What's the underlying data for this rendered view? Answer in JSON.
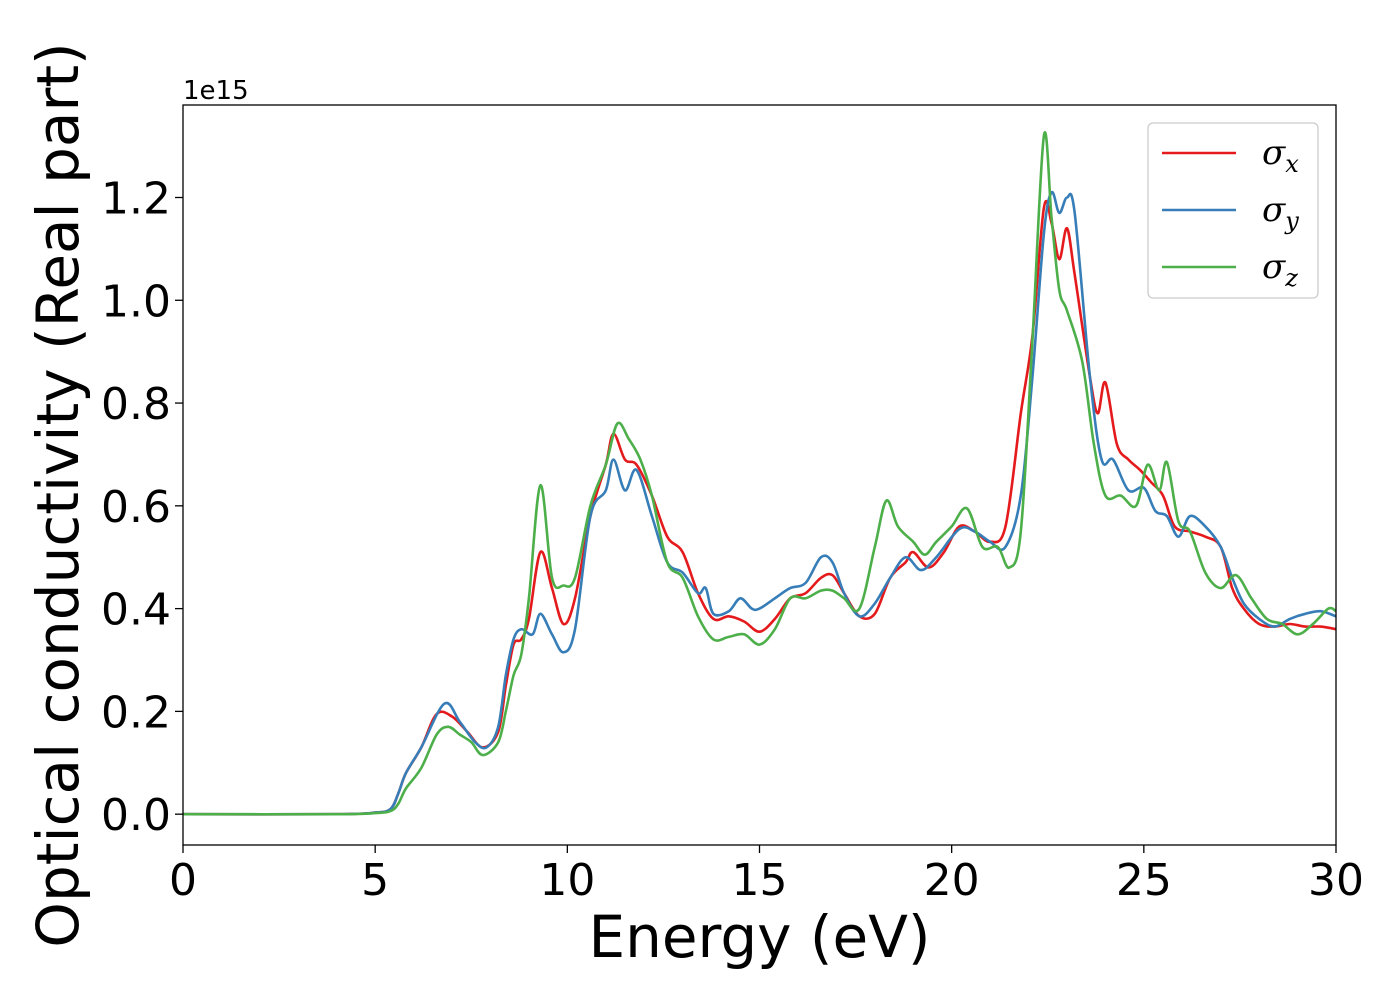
{
  "chart_data": {
    "type": "line",
    "xlabel": "Energy (eV)",
    "ylabel": "Optical conductivity (Real part)",
    "y_offset_label": "1e15",
    "xlim": [
      0,
      30
    ],
    "ylim": [
      -0.06,
      1.38
    ],
    "x_ticks": [
      0,
      5,
      10,
      15,
      20,
      25,
      30
    ],
    "x_tick_labels": [
      "0",
      "5",
      "10",
      "15",
      "20",
      "25",
      "30"
    ],
    "y_ticks": [
      0.0,
      0.2,
      0.4,
      0.6,
      0.8,
      1.0,
      1.2
    ],
    "y_tick_labels": [
      "0.0",
      "0.2",
      "0.4",
      "0.6",
      "0.8",
      "1.0",
      "1.2"
    ],
    "grid": false,
    "legend_position": "top-right",
    "series": [
      {
        "name": "σx",
        "symbol": "σ",
        "subscript": "x",
        "color": "#e41a1c",
        "points": [
          [
            0,
            0
          ],
          [
            4,
            0
          ],
          [
            5,
            0.003
          ],
          [
            5.4,
            0.01
          ],
          [
            5.6,
            0.04
          ],
          [
            5.8,
            0.08
          ],
          [
            6.2,
            0.13
          ],
          [
            6.6,
            0.195
          ],
          [
            7.0,
            0.19
          ],
          [
            7.4,
            0.16
          ],
          [
            7.8,
            0.13
          ],
          [
            8.2,
            0.16
          ],
          [
            8.4,
            0.25
          ],
          [
            8.6,
            0.33
          ],
          [
            8.8,
            0.34
          ],
          [
            9.0,
            0.38
          ],
          [
            9.3,
            0.51
          ],
          [
            9.6,
            0.44
          ],
          [
            9.9,
            0.37
          ],
          [
            10.2,
            0.42
          ],
          [
            10.6,
            0.58
          ],
          [
            11.0,
            0.68
          ],
          [
            11.2,
            0.74
          ],
          [
            11.5,
            0.69
          ],
          [
            11.8,
            0.68
          ],
          [
            12.2,
            0.62
          ],
          [
            12.6,
            0.54
          ],
          [
            13.0,
            0.51
          ],
          [
            13.4,
            0.43
          ],
          [
            13.8,
            0.38
          ],
          [
            14.2,
            0.385
          ],
          [
            14.6,
            0.375
          ],
          [
            15.0,
            0.355
          ],
          [
            15.4,
            0.38
          ],
          [
            15.8,
            0.42
          ],
          [
            16.2,
            0.43
          ],
          [
            16.6,
            0.46
          ],
          [
            16.9,
            0.465
          ],
          [
            17.2,
            0.43
          ],
          [
            17.6,
            0.385
          ],
          [
            18.0,
            0.39
          ],
          [
            18.4,
            0.46
          ],
          [
            18.8,
            0.49
          ],
          [
            19.0,
            0.51
          ],
          [
            19.4,
            0.48
          ],
          [
            19.8,
            0.51
          ],
          [
            20.2,
            0.56
          ],
          [
            20.6,
            0.55
          ],
          [
            21.0,
            0.53
          ],
          [
            21.4,
            0.56
          ],
          [
            21.8,
            0.78
          ],
          [
            22.1,
            0.93
          ],
          [
            22.4,
            1.18
          ],
          [
            22.6,
            1.15
          ],
          [
            22.8,
            1.08
          ],
          [
            23.0,
            1.14
          ],
          [
            23.2,
            1.05
          ],
          [
            23.6,
            0.85
          ],
          [
            23.8,
            0.78
          ],
          [
            24.0,
            0.84
          ],
          [
            24.3,
            0.72
          ],
          [
            24.6,
            0.69
          ],
          [
            24.9,
            0.67
          ],
          [
            25.2,
            0.645
          ],
          [
            25.5,
            0.62
          ],
          [
            25.8,
            0.56
          ],
          [
            26.2,
            0.55
          ],
          [
            26.6,
            0.54
          ],
          [
            27.0,
            0.52
          ],
          [
            27.3,
            0.44
          ],
          [
            27.6,
            0.4
          ],
          [
            28.0,
            0.37
          ],
          [
            28.4,
            0.365
          ],
          [
            28.8,
            0.37
          ],
          [
            29.2,
            0.365
          ],
          [
            29.6,
            0.365
          ],
          [
            30.0,
            0.36
          ]
        ]
      },
      {
        "name": "σy",
        "symbol": "σ",
        "subscript": "y",
        "color": "#377eb8",
        "points": [
          [
            0,
            0
          ],
          [
            4,
            0
          ],
          [
            5,
            0.003
          ],
          [
            5.4,
            0.01
          ],
          [
            5.6,
            0.04
          ],
          [
            5.8,
            0.08
          ],
          [
            6.2,
            0.13
          ],
          [
            6.8,
            0.215
          ],
          [
            7.2,
            0.18
          ],
          [
            7.6,
            0.14
          ],
          [
            7.9,
            0.13
          ],
          [
            8.2,
            0.17
          ],
          [
            8.4,
            0.27
          ],
          [
            8.6,
            0.34
          ],
          [
            8.8,
            0.36
          ],
          [
            9.1,
            0.35
          ],
          [
            9.3,
            0.39
          ],
          [
            9.6,
            0.35
          ],
          [
            9.9,
            0.315
          ],
          [
            10.2,
            0.36
          ],
          [
            10.6,
            0.58
          ],
          [
            11.0,
            0.63
          ],
          [
            11.2,
            0.69
          ],
          [
            11.5,
            0.63
          ],
          [
            11.8,
            0.67
          ],
          [
            12.2,
            0.58
          ],
          [
            12.6,
            0.49
          ],
          [
            13.0,
            0.47
          ],
          [
            13.4,
            0.43
          ],
          [
            13.6,
            0.44
          ],
          [
            13.8,
            0.39
          ],
          [
            14.2,
            0.395
          ],
          [
            14.5,
            0.42
          ],
          [
            14.8,
            0.4
          ],
          [
            15.0,
            0.4
          ],
          [
            15.4,
            0.42
          ],
          [
            15.8,
            0.44
          ],
          [
            16.2,
            0.45
          ],
          [
            16.6,
            0.5
          ],
          [
            16.9,
            0.49
          ],
          [
            17.2,
            0.43
          ],
          [
            17.6,
            0.385
          ],
          [
            18.0,
            0.41
          ],
          [
            18.4,
            0.46
          ],
          [
            18.8,
            0.5
          ],
          [
            19.2,
            0.475
          ],
          [
            19.6,
            0.5
          ],
          [
            20.2,
            0.555
          ],
          [
            20.6,
            0.55
          ],
          [
            21.0,
            0.53
          ],
          [
            21.4,
            0.52
          ],
          [
            21.8,
            0.62
          ],
          [
            22.1,
            0.85
          ],
          [
            22.4,
            1.13
          ],
          [
            22.6,
            1.21
          ],
          [
            22.8,
            1.17
          ],
          [
            23.0,
            1.2
          ],
          [
            23.2,
            1.17
          ],
          [
            23.6,
            0.85
          ],
          [
            23.9,
            0.69
          ],
          [
            24.2,
            0.69
          ],
          [
            24.6,
            0.63
          ],
          [
            25.0,
            0.635
          ],
          [
            25.3,
            0.59
          ],
          [
            25.6,
            0.58
          ],
          [
            25.9,
            0.54
          ],
          [
            26.2,
            0.58
          ],
          [
            26.6,
            0.56
          ],
          [
            27.0,
            0.52
          ],
          [
            27.3,
            0.46
          ],
          [
            27.6,
            0.41
          ],
          [
            28.0,
            0.38
          ],
          [
            28.4,
            0.365
          ],
          [
            28.8,
            0.38
          ],
          [
            29.2,
            0.39
          ],
          [
            29.6,
            0.395
          ],
          [
            30.0,
            0.385
          ]
        ]
      },
      {
        "name": "σz",
        "symbol": "σ",
        "subscript": "z",
        "color": "#4daf4a",
        "points": [
          [
            0,
            0
          ],
          [
            4,
            0
          ],
          [
            5,
            0.002
          ],
          [
            5.4,
            0.006
          ],
          [
            5.6,
            0.02
          ],
          [
            5.8,
            0.05
          ],
          [
            6.2,
            0.09
          ],
          [
            6.6,
            0.155
          ],
          [
            6.9,
            0.17
          ],
          [
            7.2,
            0.155
          ],
          [
            7.5,
            0.14
          ],
          [
            7.8,
            0.115
          ],
          [
            8.2,
            0.14
          ],
          [
            8.4,
            0.2
          ],
          [
            8.6,
            0.27
          ],
          [
            8.8,
            0.31
          ],
          [
            9.0,
            0.42
          ],
          [
            9.3,
            0.64
          ],
          [
            9.6,
            0.46
          ],
          [
            9.9,
            0.445
          ],
          [
            10.2,
            0.46
          ],
          [
            10.6,
            0.6
          ],
          [
            11.0,
            0.68
          ],
          [
            11.3,
            0.76
          ],
          [
            11.6,
            0.73
          ],
          [
            11.9,
            0.69
          ],
          [
            12.2,
            0.62
          ],
          [
            12.6,
            0.49
          ],
          [
            13.0,
            0.46
          ],
          [
            13.4,
            0.385
          ],
          [
            13.8,
            0.34
          ],
          [
            14.2,
            0.345
          ],
          [
            14.6,
            0.35
          ],
          [
            15.0,
            0.33
          ],
          [
            15.4,
            0.36
          ],
          [
            15.8,
            0.42
          ],
          [
            16.2,
            0.42
          ],
          [
            16.6,
            0.435
          ],
          [
            16.9,
            0.435
          ],
          [
            17.2,
            0.42
          ],
          [
            17.6,
            0.4
          ],
          [
            18.0,
            0.52
          ],
          [
            18.3,
            0.61
          ],
          [
            18.6,
            0.56
          ],
          [
            19.0,
            0.53
          ],
          [
            19.3,
            0.505
          ],
          [
            19.6,
            0.53
          ],
          [
            20.0,
            0.56
          ],
          [
            20.4,
            0.595
          ],
          [
            20.8,
            0.52
          ],
          [
            21.2,
            0.52
          ],
          [
            21.5,
            0.48
          ],
          [
            21.8,
            0.55
          ],
          [
            22.1,
            0.92
          ],
          [
            22.4,
            1.32
          ],
          [
            22.6,
            1.16
          ],
          [
            22.8,
            1.02
          ],
          [
            23.0,
            0.98
          ],
          [
            23.4,
            0.88
          ],
          [
            23.7,
            0.72
          ],
          [
            24.0,
            0.62
          ],
          [
            24.4,
            0.62
          ],
          [
            24.8,
            0.6
          ],
          [
            25.1,
            0.68
          ],
          [
            25.4,
            0.63
          ],
          [
            25.6,
            0.685
          ],
          [
            25.9,
            0.57
          ],
          [
            26.2,
            0.55
          ],
          [
            26.6,
            0.47
          ],
          [
            27.0,
            0.44
          ],
          [
            27.4,
            0.465
          ],
          [
            27.8,
            0.42
          ],
          [
            28.2,
            0.38
          ],
          [
            28.6,
            0.37
          ],
          [
            29.0,
            0.35
          ],
          [
            29.4,
            0.37
          ],
          [
            29.8,
            0.4
          ],
          [
            30.0,
            0.395
          ]
        ]
      }
    ]
  }
}
